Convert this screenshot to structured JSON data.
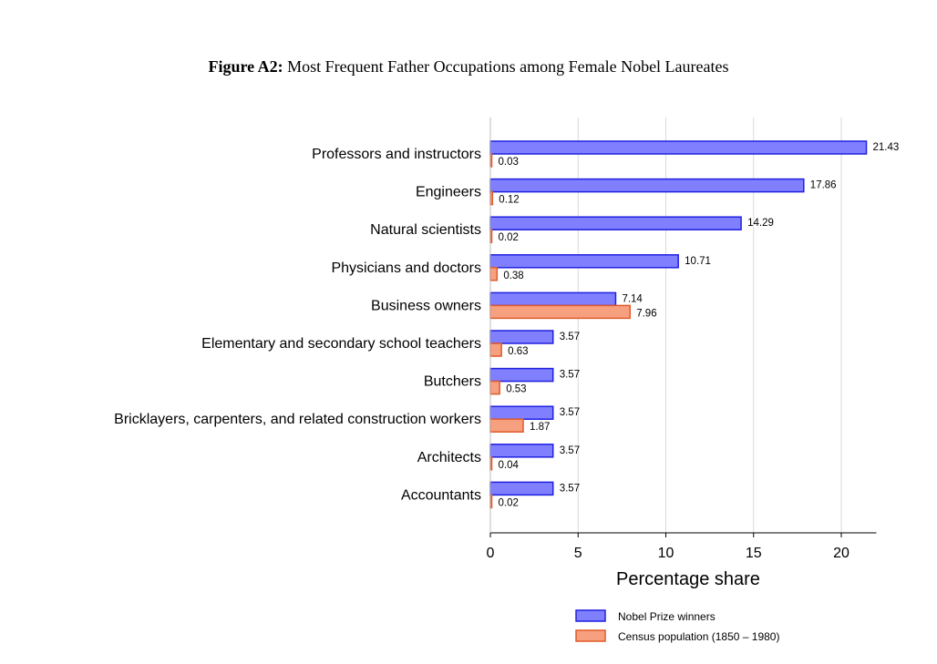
{
  "figure": {
    "label": "Figure A2:",
    "caption": "Most Frequent Father Occupations among Female Nobel Laureates"
  },
  "chart_data": {
    "type": "bar",
    "orientation": "horizontal",
    "categories": [
      "Professors and instructors",
      "Engineers",
      "Natural scientists",
      "Physicians and doctors",
      "Business owners",
      "Elementary and secondary school teachers",
      "Butchers",
      "Bricklayers, carpenters, and related construction workers",
      "Architects",
      "Accountants"
    ],
    "series": [
      {
        "name": "Nobel Prize winners",
        "values": [
          21.43,
          17.86,
          14.29,
          10.71,
          7.14,
          3.57,
          3.57,
          3.57,
          3.57,
          3.57
        ],
        "labels": [
          "21.43",
          "17.86",
          "14.29",
          "10.71",
          "7.14",
          "3.57",
          "3.57",
          "3.57",
          "3.57",
          "3.57"
        ],
        "fill": "#8080ff",
        "stroke": "#2020e0"
      },
      {
        "name": "Census population (1850 – 1980)",
        "values": [
          0.03,
          0.12,
          0.02,
          0.38,
          7.96,
          0.63,
          0.53,
          1.87,
          0.04,
          0.02
        ],
        "labels": [
          "0.03",
          "0.12",
          "0.02",
          "0.38",
          "7.96",
          "0.63",
          "0.53",
          "1.87",
          "0.04",
          "0.02"
        ],
        "fill": "#f7a080",
        "stroke": "#e05a2a"
      }
    ],
    "xlabel": "Percentage share",
    "ylabel": "",
    "xlim": [
      0,
      22
    ],
    "xticks": [
      0,
      5,
      10,
      15,
      20
    ],
    "grid": "vertical",
    "legend": "bottom"
  }
}
